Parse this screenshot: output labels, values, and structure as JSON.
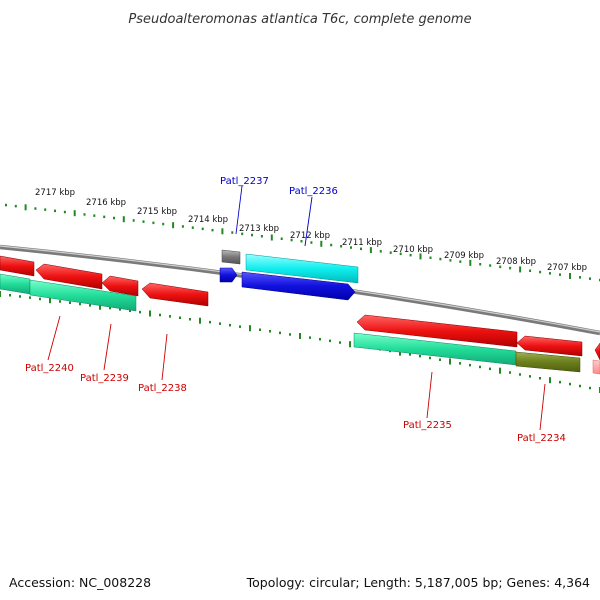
{
  "title": "Pseudoalteromonas atlantica T6c, complete genome",
  "footer": {
    "accession": "Accession: NC_008228",
    "summary": "Topology: circular; Length: 5,187,005 bp; Genes: 4,364"
  },
  "colors": {
    "backbone": "#8a8a8a",
    "tick": "#228822",
    "forward_cds": "#ee1111",
    "reverse_cds_green": "#22dd99",
    "olive": "#6b7f1c",
    "cyan": "#11eeee",
    "blue": "#1111dd",
    "gray_gene": "#777777",
    "label_red": "#cc0000",
    "label_blue": "#0000cc"
  },
  "tick_labels": [
    "2717 kbp",
    "2716 kbp",
    "2715 kbp",
    "2714 kbp",
    "2713 kbp",
    "2712 kbp",
    "2711 kbp",
    "2710 kbp",
    "2709 kbp",
    "2708 kbp",
    "2707 kbp"
  ],
  "gene_labels": {
    "blue": [
      "Patl_2237",
      "Patl_2236"
    ],
    "red": [
      "Patl_2240",
      "Patl_2239",
      "Patl_2238",
      "Patl_2235",
      "Patl_2234"
    ]
  }
}
